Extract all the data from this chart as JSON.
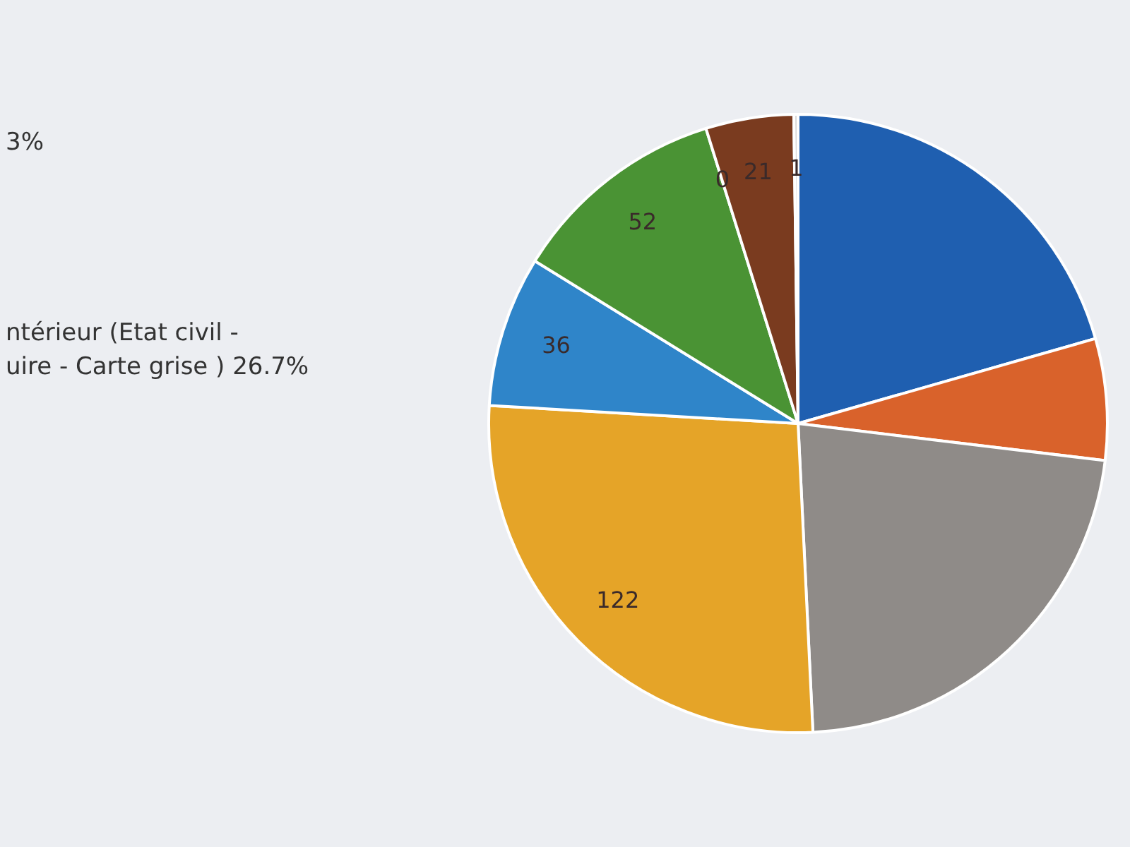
{
  "chart_data": {
    "type": "pie",
    "categories": [
      null,
      null,
      null,
      null,
      null,
      null,
      null,
      null,
      null
    ],
    "values": [
      94,
      29,
      102,
      122,
      36,
      52,
      0,
      21,
      1
    ],
    "value_labels": [
      null,
      null,
      null,
      "122",
      "36",
      "52",
      "0",
      "21",
      "1"
    ],
    "colors": [
      "#1f5fb0",
      "#d9622b",
      "#8f8b88",
      "#e5a428",
      "#2f85c9",
      "#4a9334",
      "#264478",
      "#7a3b1f",
      "#d9d9d9"
    ],
    "legend": false,
    "annotations": [
      "3%",
      "ntérieur (Etat civil -\nuire - Carte grise ) 26.7%"
    ]
  }
}
